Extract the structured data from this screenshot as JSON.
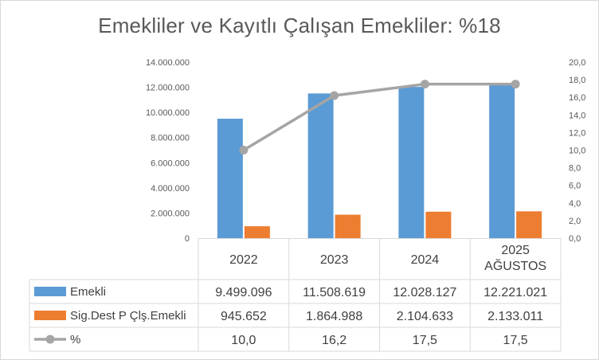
{
  "chart_data": {
    "type": "bar",
    "title": "Emekliler ve Kayıtlı Çalışan Emekliler: %18",
    "categories": [
      "2022",
      "2023",
      "2024",
      "2025 AĞUSTOS"
    ],
    "category_lines": [
      [
        "2022"
      ],
      [
        "2023"
      ],
      [
        "2024"
      ],
      [
        "2025",
        "AĞUSTOS"
      ]
    ],
    "series": [
      {
        "name": "Emekli",
        "type": "bar",
        "axis": "left",
        "color": "#5B9BD5",
        "values": [
          9499096,
          11508619,
          12028127,
          12221021
        ],
        "labels": [
          "9.499.096",
          "11.508.619",
          "12.028.127",
          "12.221.021"
        ]
      },
      {
        "name": "Sig.Dest P Çlş.Emekli",
        "type": "bar",
        "axis": "left",
        "color": "#ED7D31",
        "values": [
          945652,
          1864988,
          2104633,
          2133011
        ],
        "labels": [
          "945.652",
          "1.864.988",
          "2.104.633",
          "2.133.011"
        ]
      },
      {
        "name": "%",
        "type": "line",
        "axis": "right",
        "color": "#A5A5A5",
        "values": [
          10.0,
          16.2,
          17.5,
          17.5
        ],
        "labels": [
          "10,0",
          "16,2",
          "17,5",
          "17,5"
        ]
      }
    ],
    "y_left": {
      "min": 0,
      "max": 14000000,
      "ticks": [
        "0",
        "2.000.000",
        "4.000.000",
        "6.000.000",
        "8.000.000",
        "10.000.000",
        "12.000.000",
        "14.000.000"
      ]
    },
    "y_right": {
      "min": 0,
      "max": 20,
      "ticks": [
        "0,0",
        "2,0",
        "4,0",
        "6,0",
        "8,0",
        "10,0",
        "12,0",
        "14,0",
        "16,0",
        "18,0",
        "20,0"
      ]
    },
    "grid": false,
    "legend": "data-table"
  }
}
